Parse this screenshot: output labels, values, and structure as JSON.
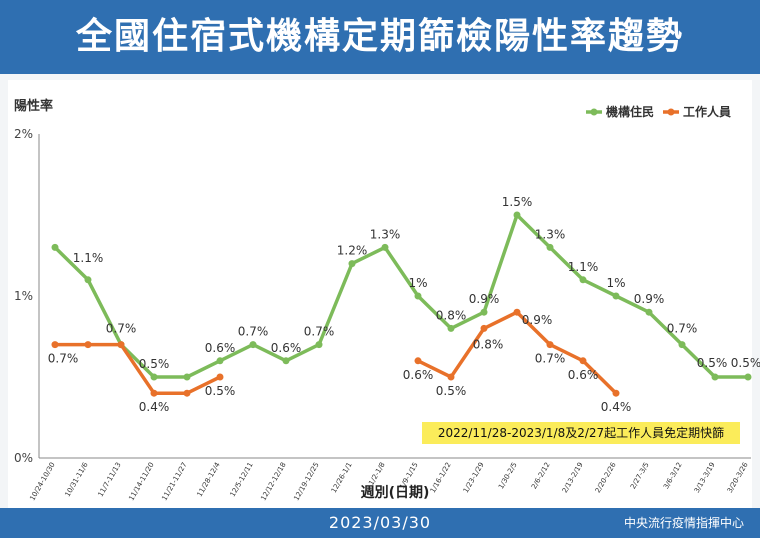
{
  "title": "全國住宿式機構定期篩檢陽性率趨勢",
  "footer": {
    "date": "2023/03/30",
    "org": "中央流行疫情指揮中心"
  },
  "note": "2022/11/28-2023/1/8及2/27起工作人員免定期快篩",
  "chart_data": {
    "type": "line",
    "ylabel": "陽性率",
    "xlabel": "週別(日期)",
    "ylim": [
      0,
      2
    ],
    "yticks": [
      "0%",
      "1%",
      "2%"
    ],
    "legend_position": "top-right",
    "categories": [
      "10/24-10/30",
      "10/31-11/6",
      "11/7-11/13",
      "11/14-11/20",
      "11/21-11/27",
      "11/28-12/4",
      "12/5-12/11",
      "12/12-12/18",
      "12/19-12/25",
      "12/26-1/1",
      "1/2-1/8",
      "1/9-1/15",
      "1/16-1/22",
      "1/23-1/29",
      "1/30-2/5",
      "2/6-2/12",
      "2/13-2/19",
      "2/20-2/26",
      "2/27-3/5",
      "3/6-3/12",
      "3/13-3/19",
      "3/20-3/26"
    ],
    "series": [
      {
        "name": "機構住民",
        "color": "#7dbb5a",
        "values": [
          1.3,
          1.1,
          0.7,
          0.5,
          0.5,
          0.6,
          0.7,
          0.6,
          0.7,
          1.2,
          1.3,
          1.0,
          0.8,
          0.9,
          1.5,
          1.3,
          1.1,
          1.0,
          0.9,
          0.7,
          0.5,
          0.5
        ],
        "labels": [
          "",
          "1.1%",
          "0.7%",
          "0.5%",
          "",
          "0.6%",
          "0.7%",
          "0.6%",
          "0.7%",
          "1.2%",
          "1.3%",
          "1%",
          "0.8%",
          "0.9%",
          "1.5%",
          "1.3%",
          "1.1%",
          "1%",
          "0.9%",
          "0.7%",
          "0.5%",
          "0.5%"
        ]
      },
      {
        "name": "工作人員",
        "color": "#e8712a",
        "values": [
          0.7,
          0.7,
          0.7,
          0.4,
          0.4,
          0.5,
          null,
          null,
          null,
          null,
          null,
          0.6,
          0.5,
          0.8,
          0.9,
          0.7,
          0.6,
          0.4,
          null,
          null,
          null,
          null
        ],
        "labels": [
          "0.7%",
          "",
          "",
          "0.4%",
          "",
          "0.5%",
          "",
          "",
          "",
          "",
          "",
          "0.6%",
          "0.5%",
          "0.8%",
          "0.9%",
          "0.7%",
          "0.6%",
          "0.4%",
          "",
          "",
          "",
          ""
        ]
      }
    ]
  }
}
